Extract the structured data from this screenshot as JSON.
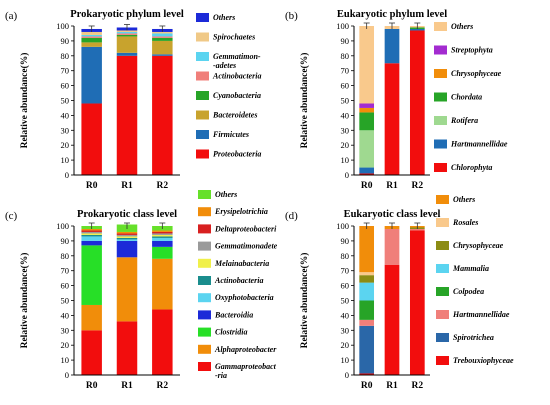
{
  "figure": {
    "colors": {
      "red": "#f20d0d",
      "blue": "#1f6db5",
      "orange": "#f18d0a",
      "brightgreen": "#27df27",
      "olive": "#8c8c14",
      "pink": "#f07f7a",
      "lightorange": "#f9c98c",
      "teal": "#1a8d8d",
      "green": "#27a427",
      "purple": "#a32bd0",
      "yellow": "#f0f04a",
      "lightgreen": "#9fd990",
      "steel": "#2a67a8",
      "skyblue": "#5bd4f0",
      "navy": "#1c2ad8",
      "gold": "#c8a32d",
      "tan": "#f0c987",
      "darkred": "#d82020",
      "lime": "#66e02a",
      "gray": "#9a9a9a"
    }
  },
  "chart_data": [
    {
      "panel": "(a)",
      "type": "bar",
      "stacked": true,
      "title": "Prokaryotic phylum level",
      "ylabel": "Relative  abundance(%)",
      "ylim": [
        0,
        100
      ],
      "yticks": [
        0,
        10,
        20,
        30,
        40,
        50,
        60,
        70,
        80,
        90,
        100
      ],
      "categories": [
        "R0",
        "R1",
        "R2"
      ],
      "legend": "right",
      "series": [
        {
          "name": "Proteobacteria",
          "color": "#f20d0d",
          "values": [
            48,
            80,
            80
          ]
        },
        {
          "name": "Firmicutes",
          "color": "#1f6db5",
          "values": [
            38,
            2,
            1
          ]
        },
        {
          "name": "Bacteroidetes",
          "color": "#c8a32d",
          "values": [
            3,
            11,
            9
          ]
        },
        {
          "name": "Cyanobacteria",
          "color": "#27a427",
          "values": [
            3,
            1,
            2
          ]
        },
        {
          "name": "Actinobacteria",
          "color": "#f07f7a",
          "values": [
            1,
            1,
            1
          ]
        },
        {
          "name": "Gemmatimon-\n-adetes",
          "color": "#5bd4f0",
          "values": [
            1,
            1,
            2
          ]
        },
        {
          "name": "Spirochaetes",
          "color": "#f0c987",
          "values": [
            2,
            1,
            1
          ]
        },
        {
          "name": "Others",
          "color": "#1c2ad8",
          "values": [
            2,
            2,
            2
          ]
        }
      ]
    },
    {
      "panel": "(b)",
      "type": "bar",
      "stacked": true,
      "title": "Eukaryotic phylum level",
      "ylabel": "Relative  abundance(%)",
      "ylim": [
        0,
        100
      ],
      "yticks": [
        0,
        10,
        20,
        30,
        40,
        50,
        60,
        70,
        80,
        90,
        100
      ],
      "categories": [
        "R0",
        "R1",
        "R2"
      ],
      "legend": "right",
      "series": [
        {
          "name": "Chlorophyta",
          "color": "#f20d0d",
          "values": [
            1,
            75,
            97
          ]
        },
        {
          "name": "Hartmannellidae",
          "color": "#1f6db5",
          "values": [
            4,
            23,
            1
          ]
        },
        {
          "name": "Rotifera",
          "color": "#9fd990",
          "values": [
            25,
            0,
            0
          ]
        },
        {
          "name": "Chordata",
          "color": "#27a427",
          "values": [
            12,
            0,
            1
          ]
        },
        {
          "name": "Chrysophyceae",
          "color": "#f18d0a",
          "values": [
            3,
            0,
            0
          ]
        },
        {
          "name": "Streptophyta",
          "color": "#a32bd0",
          "values": [
            3,
            0,
            0
          ]
        },
        {
          "name": "Others",
          "color": "#f9c98c",
          "values": [
            52,
            2,
            1
          ]
        }
      ]
    },
    {
      "panel": "(c)",
      "type": "bar",
      "stacked": true,
      "title": "Prokaryotic class level",
      "ylabel": "Relative  abundance(%)",
      "ylim": [
        0,
        100
      ],
      "yticks": [
        0,
        10,
        20,
        30,
        40,
        50,
        60,
        70,
        80,
        90,
        100
      ],
      "categories": [
        "R0",
        "R1",
        "R2"
      ],
      "legend": "right",
      "series": [
        {
          "name": "Gammaproteobact\n-ria",
          "color": "#f20d0d",
          "values": [
            30,
            36,
            44
          ]
        },
        {
          "name": "Alphaproteobacter",
          "color": "#f18d0a",
          "values": [
            17,
            43,
            34
          ]
        },
        {
          "name": "Clostridia",
          "color": "#27df27",
          "values": [
            40,
            0,
            8
          ]
        },
        {
          "name": "Bacteroidia",
          "color": "#1c2ad8",
          "values": [
            3,
            11,
            4
          ]
        },
        {
          "name": "Oxyphotobacteria",
          "color": "#5bd4f0",
          "values": [
            3,
            1,
            2
          ]
        },
        {
          "name": "Actinobacteria",
          "color": "#1a8d8d",
          "values": [
            1,
            1,
            1
          ]
        },
        {
          "name": "Melainabacteria",
          "color": "#f0f04a",
          "values": [
            1,
            1,
            1
          ]
        },
        {
          "name": "Gemmatimonadete",
          "color": "#9a9a9a",
          "values": [
            1,
            1,
            1
          ]
        },
        {
          "name": "Deltaproteobacteri",
          "color": "#d82020",
          "values": [
            1,
            1,
            1
          ]
        },
        {
          "name": "Erysipelotrichia",
          "color": "#f18d0a",
          "values": [
            1,
            1,
            1
          ]
        },
        {
          "name": "Others",
          "color": "#66e02a",
          "values": [
            2,
            5,
            3
          ]
        }
      ]
    },
    {
      "panel": "(d)",
      "type": "bar",
      "stacked": true,
      "title": "Eukaryotic class level",
      "ylabel": "Relative  abundance(%)",
      "ylim": [
        0,
        100
      ],
      "yticks": [
        0,
        10,
        20,
        30,
        40,
        50,
        60,
        70,
        80,
        90,
        100
      ],
      "categories": [
        "R0",
        "R1",
        "R2"
      ],
      "legend": "right",
      "series": [
        {
          "name": "Trebouxiophyceae",
          "color": "#f20d0d",
          "values": [
            1,
            74,
            97
          ]
        },
        {
          "name": "Spirotrichea",
          "color": "#2a67a8",
          "values": [
            32,
            0,
            0
          ]
        },
        {
          "name": "Hartmannellidae",
          "color": "#f07f7a",
          "values": [
            4,
            24,
            1
          ]
        },
        {
          "name": "Colpodea",
          "color": "#27a427",
          "values": [
            13,
            0,
            0
          ]
        },
        {
          "name": "Mammalia",
          "color": "#5bd4f0",
          "values": [
            12,
            0,
            0
          ]
        },
        {
          "name": "Chrysophyceae",
          "color": "#8c8c14",
          "values": [
            5,
            0,
            1
          ]
        },
        {
          "name": "Rosales",
          "color": "#f9c98c",
          "values": [
            2,
            0,
            0
          ]
        },
        {
          "name": "Others",
          "color": "#f18d0a",
          "values": [
            31,
            2,
            1
          ]
        }
      ]
    }
  ]
}
